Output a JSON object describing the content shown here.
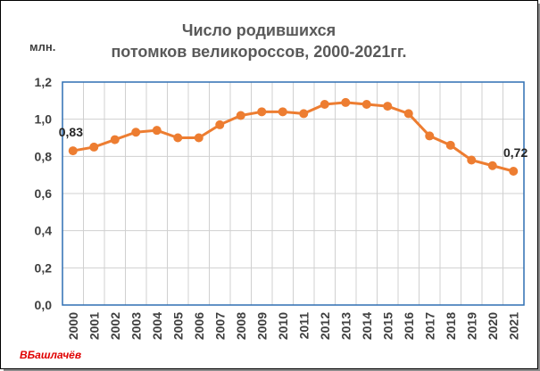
{
  "title_line1": "Число родившихся",
  "title_line2": "потомков великороссов, 2000-2021гг.",
  "unit_label": "млн.",
  "signature": "ВБашлачёв",
  "colors": {
    "series": "#ed7d31",
    "plot_border": "#2f6fb3",
    "grid": "#d0d0d0"
  },
  "chart_data": {
    "type": "line",
    "title": "Число родившихся потомков великороссов, 2000-2021гг.",
    "ylabel": "млн.",
    "xlabel": "",
    "ylim": [
      0,
      1.2
    ],
    "yticks": [
      "0,0",
      "0,2",
      "0,4",
      "0,6",
      "0,8",
      "1,0",
      "1,2"
    ],
    "ytick_values": [
      0,
      0.2,
      0.4,
      0.6,
      0.8,
      1.0,
      1.2
    ],
    "grid": true,
    "legend": "none",
    "x": [
      "2000",
      "2001",
      "2002",
      "2003",
      "2004",
      "2005",
      "2006",
      "2007",
      "2008",
      "2009",
      "2010",
      "2011",
      "2012",
      "2013",
      "2014",
      "2015",
      "2016",
      "2017",
      "2018",
      "2019",
      "2020",
      "2021"
    ],
    "series": [
      {
        "values": [
          0.83,
          0.85,
          0.89,
          0.93,
          0.94,
          0.9,
          0.9,
          0.97,
          1.02,
          1.04,
          1.04,
          1.03,
          1.08,
          1.09,
          1.08,
          1.07,
          1.03,
          0.91,
          0.86,
          0.78,
          0.75,
          0.72
        ]
      }
    ],
    "data_labels": [
      {
        "index": 0,
        "text": "0,83"
      },
      {
        "index": 21,
        "text": "0,72"
      }
    ]
  }
}
